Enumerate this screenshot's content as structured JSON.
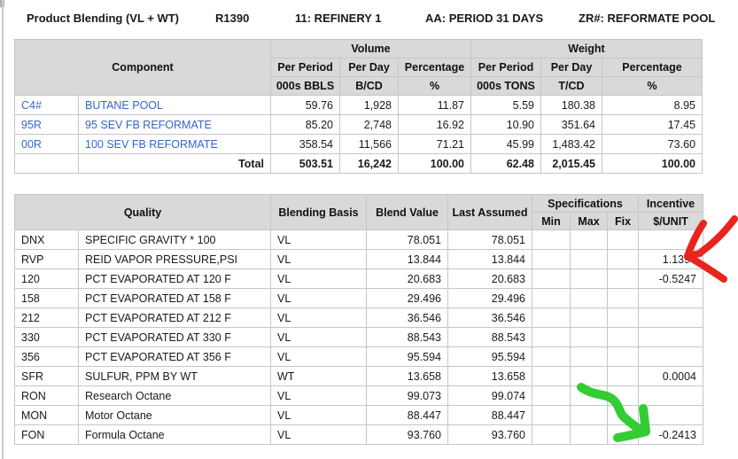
{
  "header": {
    "title": "Product Blending (VL + WT)",
    "report_id": "R1390",
    "refinery": "11: REFINERY 1",
    "period": "AA: PERIOD 31 DAYS",
    "pool": "ZR#: REFORMATE POOL"
  },
  "component_table": {
    "headers": {
      "component": "Component",
      "volume_group": "Volume",
      "weight_group": "Weight",
      "per_period": "Per Period",
      "per_day": "Per Day",
      "percentage": "Percentage",
      "vol_period_units": "000s BBLS",
      "vol_day_units": "B/CD",
      "vol_pct_units": "%",
      "wt_period_units": "000s TONS",
      "wt_day_units": "T/CD",
      "wt_pct_units": "%"
    },
    "rows": [
      {
        "code": "C4#",
        "name": "BUTANE POOL",
        "vol_period": "59.76",
        "vol_day": "1,928",
        "vol_pct": "11.87",
        "wt_period": "5.59",
        "wt_day": "180.38",
        "wt_pct": "8.95"
      },
      {
        "code": "95R",
        "name": "95 SEV FB REFORMATE",
        "vol_period": "85.20",
        "vol_day": "2,748",
        "vol_pct": "16.92",
        "wt_period": "10.90",
        "wt_day": "351.64",
        "wt_pct": "17.45"
      },
      {
        "code": "00R",
        "name": "100 SEV FB REFORMATE",
        "vol_period": "358.54",
        "vol_day": "11,566",
        "vol_pct": "71.21",
        "wt_period": "45.99",
        "wt_day": "1,483.42",
        "wt_pct": "73.60"
      }
    ],
    "total": {
      "label": "Total",
      "vol_period": "503.51",
      "vol_day": "16,242",
      "vol_pct": "100.00",
      "wt_period": "62.48",
      "wt_day": "2,015.45",
      "wt_pct": "100.00"
    }
  },
  "quality_table": {
    "headers": {
      "quality": "Quality",
      "blending_basis": "Blending Basis",
      "blend_value": "Blend Value",
      "last_assumed": "Last Assumed",
      "specifications": "Specifications",
      "incentive": "Incentive",
      "min": "Min",
      "max": "Max",
      "fix": "Fix",
      "unit": "$/UNIT"
    },
    "rows": [
      {
        "code": "DNX",
        "name": "SPECIFIC GRAVITY * 100",
        "basis": "VL",
        "blend": "78.051",
        "assumed": "78.051",
        "min": "",
        "max": "",
        "fix": "",
        "incentive": ""
      },
      {
        "code": "RVP",
        "name": "REID VAPOR PRESSURE,PSI",
        "basis": "VL",
        "blend": "13.844",
        "assumed": "13.844",
        "min": "",
        "max": "",
        "fix": "",
        "incentive": "1.1394"
      },
      {
        "code": "120",
        "name": "PCT EVAPORATED AT 120 F",
        "basis": "VL",
        "blend": "20.683",
        "assumed": "20.683",
        "min": "",
        "max": "",
        "fix": "",
        "incentive": "-0.5247"
      },
      {
        "code": "158",
        "name": "PCT EVAPORATED AT 158 F",
        "basis": "VL",
        "blend": "29.496",
        "assumed": "29.496",
        "min": "",
        "max": "",
        "fix": "",
        "incentive": ""
      },
      {
        "code": "212",
        "name": "PCT EVAPORATED AT 212 F",
        "basis": "VL",
        "blend": "36.546",
        "assumed": "36.546",
        "min": "",
        "max": "",
        "fix": "",
        "incentive": ""
      },
      {
        "code": "330",
        "name": "PCT EVAPORATED AT 330 F",
        "basis": "VL",
        "blend": "88.543",
        "assumed": "88.543",
        "min": "",
        "max": "",
        "fix": "",
        "incentive": ""
      },
      {
        "code": "356",
        "name": "PCT EVAPORATED AT 356 F",
        "basis": "VL",
        "blend": "95.594",
        "assumed": "95.594",
        "min": "",
        "max": "",
        "fix": "",
        "incentive": ""
      },
      {
        "code": "SFR",
        "name": "SULFUR, PPM BY WT",
        "basis": "WT",
        "blend": "13.658",
        "assumed": "13.658",
        "min": "",
        "max": "",
        "fix": "",
        "incentive": "0.0004"
      },
      {
        "code": "RON",
        "name": "Research Octane",
        "basis": "VL",
        "blend": "99.073",
        "assumed": "99.074",
        "min": "",
        "max": "",
        "fix": "",
        "incentive": ""
      },
      {
        "code": "MON",
        "name": "Motor Octane",
        "basis": "VL",
        "blend": "88.447",
        "assumed": "88.447",
        "min": "",
        "max": "",
        "fix": "",
        "incentive": ""
      },
      {
        "code": "FON",
        "name": "Formula Octane",
        "basis": "VL",
        "blend": "93.760",
        "assumed": "93.760",
        "min": "",
        "max": "",
        "fix": "",
        "incentive": "-0.2413"
      }
    ]
  },
  "annotations": {
    "red_arrow": {
      "color": "#e8251c",
      "points_to": "RVP incentive 1.1394"
    },
    "green_arrow": {
      "color": "#33cc33",
      "points_to": "FON incentive -0.2413"
    }
  },
  "colors": {
    "header_bg": "#d9d9d9",
    "grid_border": "#c6c6c6",
    "link_blue": "#3366cc"
  }
}
